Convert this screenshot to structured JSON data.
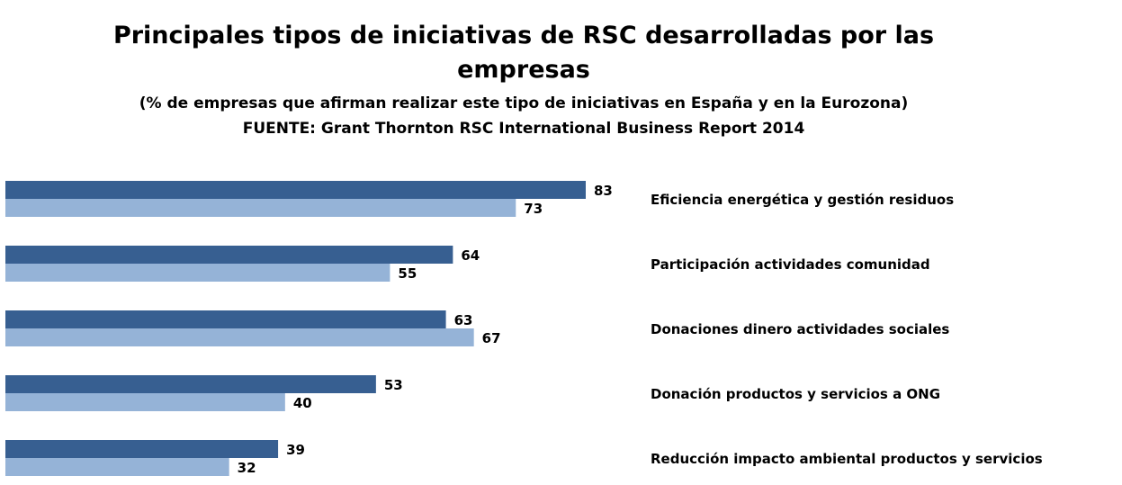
{
  "chart_data": {
    "type": "bar",
    "orientation": "horizontal",
    "title": "Principales tipos de iniciativas de RSC desarrolladas por las empresas",
    "title_lines": [
      "Principales tipos de iniciativas de RSC desarrolladas por las",
      "empresas"
    ],
    "subtitle": "(% de empresas que afirman realizar este tipo de iniciativas en España y en la Eurozona)",
    "source": "FUENTE: Grant Thornton RSC International Business Report 2014",
    "categories": [
      "Eficiencia energética y gestión residuos",
      "Participación actividades comunidad",
      "Donaciones dinero actividades sociales",
      "Donación productos y servicios a ONG",
      "Reducción impacto ambiental productos y servicios"
    ],
    "series": [
      {
        "values": [
          83,
          64,
          63,
          53,
          39
        ],
        "color": "#375f91"
      },
      {
        "values": [
          73,
          55,
          67,
          40,
          32
        ],
        "color": "#95b3d7"
      }
    ],
    "xlim": [
      0,
      100
    ],
    "grid": false,
    "legend": "none"
  }
}
